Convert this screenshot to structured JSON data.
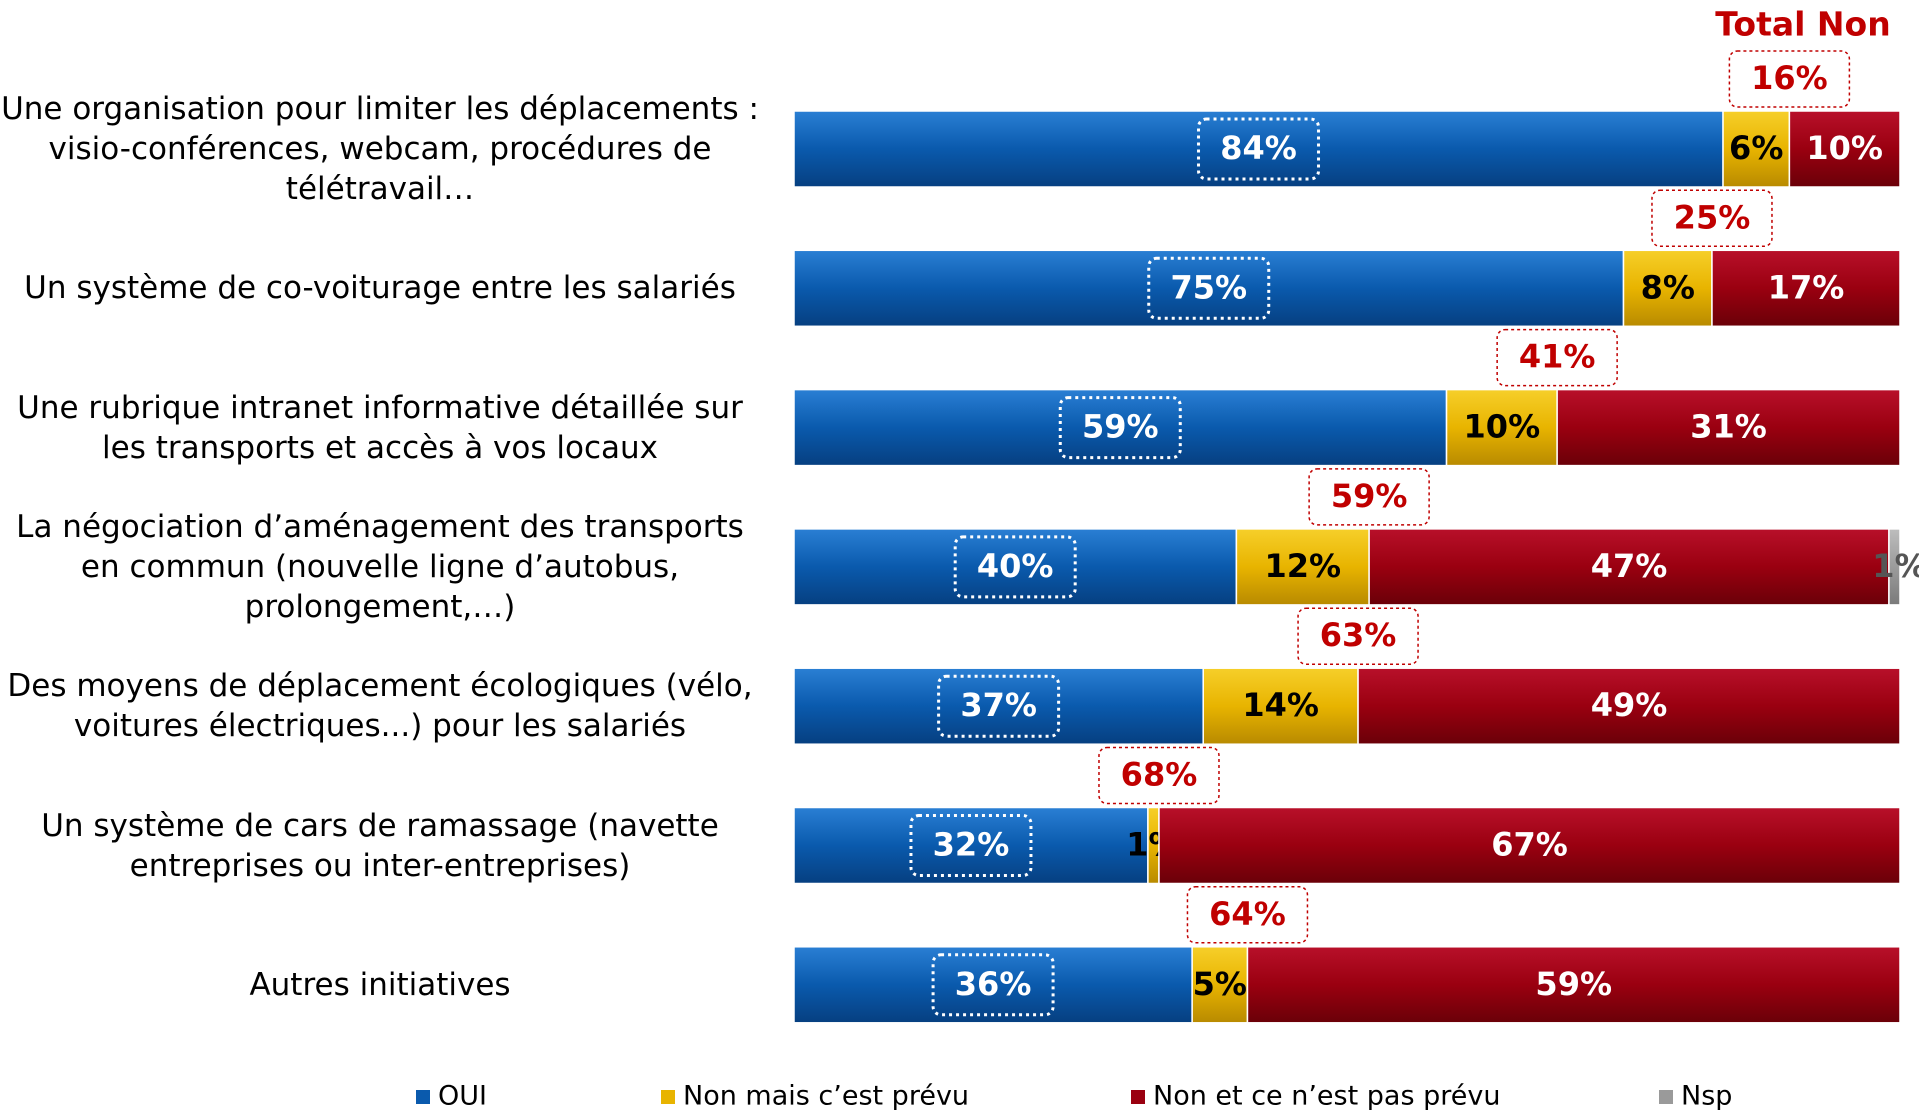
{
  "chart_data": {
    "type": "stacked-bar-horizontal",
    "categories": [
      "Une organisation pour limiter les déplacements : visio-conférences,  webcam, procédures de télétravail…",
      "Un système de co-voiturage entre les salariés",
      "Une rubrique intranet informative détaillée sur les transports et accès à vos locaux",
      "La négociation d’aménagement des transports en commun (nouvelle ligne d’autobus, prolongement,…)",
      "Des moyens de déplacement écologiques (vélo, voitures électriques...) pour les salariés",
      "Un système de cars de ramassage (navette entreprises ou inter-entreprises)",
      "Autres initiatives"
    ],
    "series": [
      {
        "name": "OUI",
        "color": "#0a5aad",
        "values": [
          84,
          75,
          59,
          40,
          37,
          32,
          36
        ],
        "value_labels": [
          "84%",
          "75%",
          "59%",
          "40%",
          "37%",
          "32%",
          "36%"
        ]
      },
      {
        "name": "Non mais c’est prévu",
        "color": "#e8b400",
        "values": [
          6,
          8,
          10,
          12,
          14,
          1,
          5
        ],
        "value_labels": [
          "6%",
          "8%",
          "10%",
          "12%",
          "14%",
          "1%",
          "5%"
        ]
      },
      {
        "name": "Non et ce n’est pas prévu",
        "color": "#9a0010",
        "values": [
          10,
          17,
          31,
          47,
          49,
          67,
          59
        ],
        "value_labels": [
          "10%",
          "17%",
          "31%",
          "47%",
          "49%",
          "67%",
          "59%"
        ]
      },
      {
        "name": "Nsp",
        "color": "#9a9a9a",
        "values": [
          null,
          null,
          null,
          1,
          null,
          null,
          null
        ],
        "value_labels": [
          null,
          null,
          null,
          "1%",
          null,
          null,
          null
        ]
      }
    ],
    "total_non": {
      "title": "Total Non",
      "values": [
        16,
        25,
        41,
        59,
        63,
        68,
        64
      ],
      "value_labels": [
        "16%",
        "25%",
        "41%",
        "59%",
        "63%",
        "68%",
        "64%"
      ]
    },
    "xlim": [
      0,
      100
    ]
  }
}
